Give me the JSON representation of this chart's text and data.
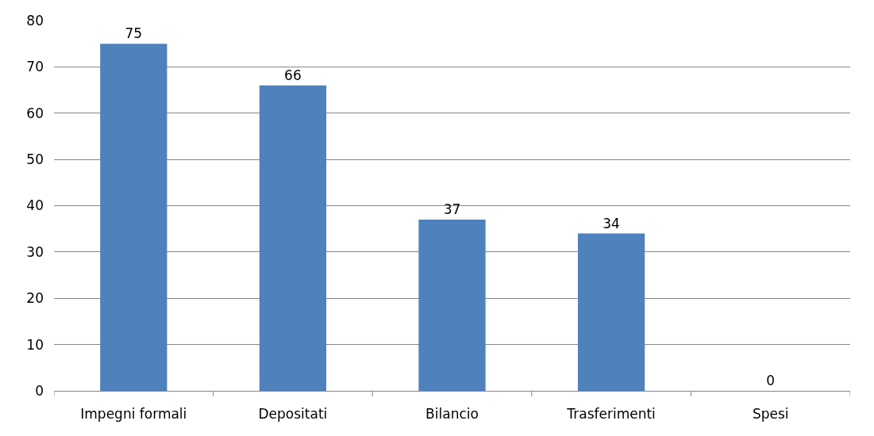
{
  "chart_data": {
    "type": "bar",
    "categories": [
      "Impegni formali",
      "Depositati",
      "Bilancio",
      "Trasferimenti",
      "Spesi"
    ],
    "values": [
      75,
      66,
      37,
      34,
      0
    ],
    "color": "#4f81bd",
    "ylim": [
      0,
      80
    ],
    "yticks": [
      0,
      10,
      20,
      30,
      40,
      50,
      60,
      70,
      80
    ],
    "grid": "y",
    "data_labels": true
  }
}
